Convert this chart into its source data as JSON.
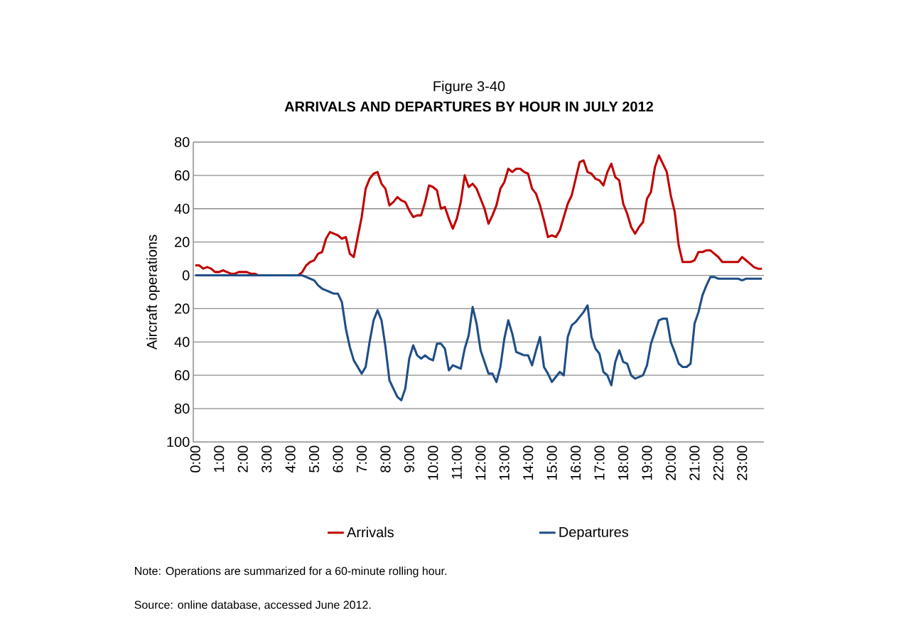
{
  "chart_data": {
    "type": "line",
    "title": "Figure 3-40",
    "subtitle": "**ARRIVALS AND DEPARTURES BY HOUR IN JULY 2012**",
    "ylabel": "Aircraft operations",
    "categories": [
      "0:00",
      null,
      null,
      null,
      null,
      null,
      "1:00",
      null,
      null,
      null,
      null,
      null,
      "2:00",
      null,
      null,
      null,
      null,
      null,
      "3:00",
      null,
      null,
      null,
      null,
      null,
      "4:00",
      null,
      null,
      null,
      null,
      null,
      "5:00",
      null,
      null,
      null,
      null,
      null,
      "6:00",
      null,
      null,
      null,
      null,
      null,
      "7:00",
      null,
      null,
      null,
      null,
      null,
      "8:00",
      null,
      null,
      null,
      null,
      null,
      "9:00",
      null,
      null,
      null,
      null,
      null,
      "10:00",
      null,
      null,
      null,
      null,
      null,
      "11:00",
      null,
      null,
      null,
      null,
      null,
      "12:00",
      null,
      null,
      null,
      null,
      null,
      "13:00",
      null,
      null,
      null,
      null,
      null,
      "14:00",
      null,
      null,
      null,
      null,
      null,
      "15:00",
      null,
      null,
      null,
      null,
      null,
      "16:00",
      null,
      null,
      null,
      null,
      null,
      "17:00",
      null,
      null,
      null,
      null,
      null,
      "18:00",
      null,
      null,
      null,
      null,
      null,
      "19:00",
      null,
      null,
      null,
      null,
      null,
      "20:00",
      null,
      null,
      null,
      null,
      null,
      "21:00",
      null,
      null,
      null,
      null,
      null,
      "22:00",
      null,
      null,
      null,
      null,
      null,
      "23:00",
      null,
      null,
      null,
      null,
      null
    ],
    "series": [
      {
        "name": "Arrivals",
        "color": "#c00000",
        "values": [
          6,
          6,
          4,
          5,
          4,
          2,
          2,
          3,
          2,
          1,
          1,
          2,
          2,
          2,
          1,
          1,
          0,
          0,
          0,
          0,
          0,
          0,
          0,
          0,
          0,
          0,
          0,
          2,
          6,
          8,
          9,
          13,
          14,
          22,
          26,
          25,
          24,
          22,
          23,
          13,
          11,
          23,
          35,
          52,
          58,
          61,
          62,
          55,
          52,
          42,
          44,
          47,
          45,
          44,
          39,
          35,
          36,
          36,
          44,
          54,
          53,
          51,
          40,
          41,
          34,
          28,
          34,
          44,
          60,
          53,
          55,
          52,
          46,
          40,
          31,
          36,
          42,
          52,
          56,
          64,
          62,
          64,
          64,
          62,
          61,
          52,
          49,
          42,
          33,
          23,
          24,
          23,
          27,
          35,
          43,
          48,
          58,
          68,
          69,
          62,
          61,
          58,
          57,
          54,
          62,
          67,
          59,
          57,
          43,
          37,
          29,
          25,
          29,
          32,
          46,
          50,
          65,
          72,
          67,
          62,
          48,
          38,
          18,
          8,
          8,
          8,
          9,
          14,
          14,
          15,
          15,
          13,
          11,
          8,
          8,
          8,
          8,
          8,
          11,
          9,
          7,
          5,
          4,
          4
        ]
      },
      {
        "name": "Departures",
        "color": "#1f4e86",
        "values": [
          0,
          0,
          0,
          0,
          0,
          0,
          0,
          0,
          0,
          0,
          0,
          0,
          0,
          0,
          0,
          0,
          0,
          0,
          0,
          0,
          0,
          0,
          0,
          0,
          0,
          0,
          0,
          0,
          -1,
          -2,
          -3,
          -6,
          -8,
          -9,
          -10,
          -11,
          -11,
          -16,
          -32,
          -43,
          -51,
          -55,
          -59,
          -55,
          -40,
          -27,
          -21,
          -27,
          -43,
          -63,
          -68,
          -73,
          -75,
          -68,
          -50,
          -42,
          -48,
          -50,
          -48,
          -50,
          -51,
          -41,
          -41,
          -44,
          -57,
          -54,
          -55,
          -56,
          -44,
          -36,
          -19,
          -29,
          -45,
          -52,
          -59,
          -59,
          -64,
          -55,
          -38,
          -27,
          -35,
          -46,
          -47,
          -48,
          -48,
          -54,
          -45,
          -37,
          -55,
          -59,
          -64,
          -61,
          -58,
          -60,
          -37,
          -30,
          -28,
          -25,
          -22,
          -18,
          -37,
          -44,
          -47,
          -58,
          -60,
          -66,
          -52,
          -45,
          -52,
          -53,
          -60,
          -62,
          -61,
          -60,
          -54,
          -41,
          -34,
          -27,
          -26,
          -26,
          -40,
          -46,
          -53,
          -55,
          -55,
          -53,
          -29,
          -22,
          -12,
          -6,
          -1,
          -1,
          -2,
          -2,
          -2,
          -2,
          -2,
          -2,
          -3,
          -2,
          -2,
          -2,
          -2,
          -2
        ]
      }
    ],
    "ylim": [
      -100,
      80
    ],
    "yticks": [
      {
        "value": -100,
        "label": "100"
      },
      {
        "value": -80,
        "label": "80"
      },
      {
        "value": -60,
        "label": "60"
      },
      {
        "value": -40,
        "label": "40"
      },
      {
        "value": -20,
        "label": "20"
      },
      0,
      20,
      40,
      60,
      80
    ],
    "grid": "y",
    "legend": "bottom",
    "marker": "none",
    "line_style": "solid",
    "annotations": [
      "Note:  Operations are summarized for a 60-minute rolling hour.",
      "Source:  online database, accessed June 2012."
    ]
  }
}
